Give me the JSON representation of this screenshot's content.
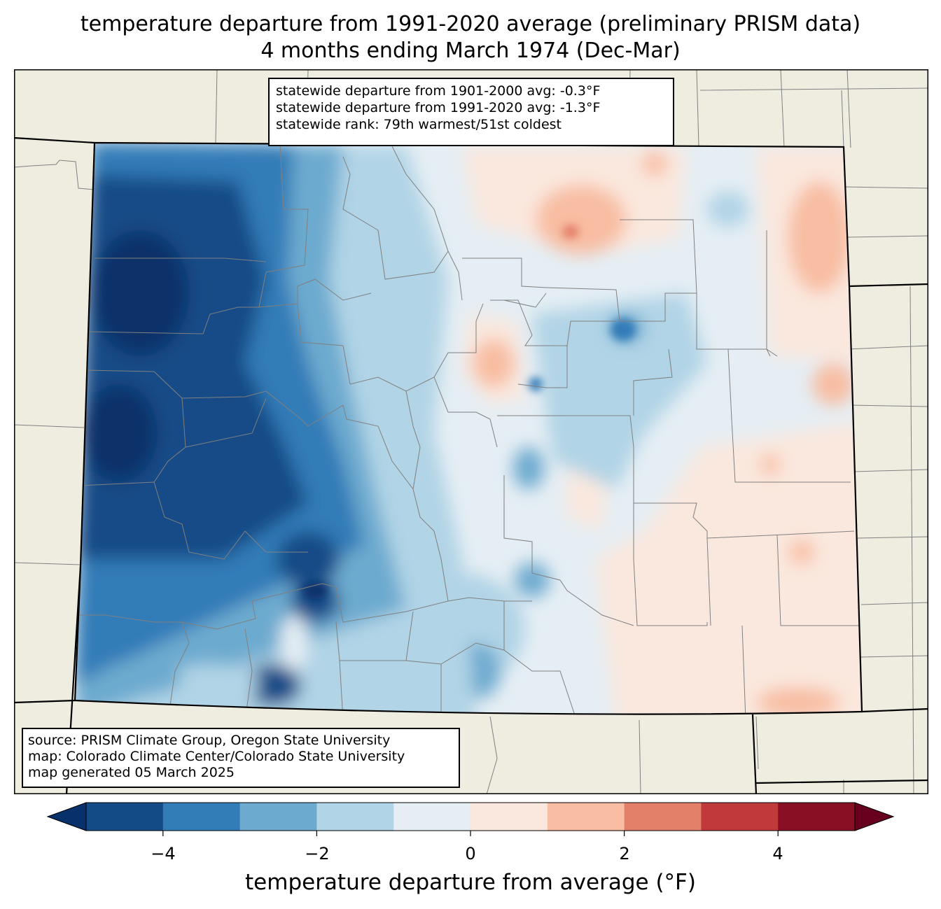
{
  "title": {
    "line1": "temperature departure from 1991-2020 average (preliminary PRISM data)",
    "line2": "4 months ending March 1974 (Dec-Mar)"
  },
  "stats": {
    "line1": "statewide departure from 1901-2000 avg: -0.3°F",
    "line2": "statewide departure from 1991-2020 avg: -1.3°F",
    "line3": "statewide rank: 79th warmest/51st coldest"
  },
  "source": {
    "line1": "source: PRISM Climate Group, Oregon State University",
    "line2": "map: Colorado Climate Center/Colorado State University",
    "line3": "map generated 05 March 2025"
  },
  "colorbar": {
    "label": "temperature departure from average (°F)",
    "range": [
      -5,
      5
    ],
    "step": 1,
    "extend": "both",
    "ticks": [
      {
        "value": -4,
        "label": "−4"
      },
      {
        "value": -2,
        "label": "−2"
      },
      {
        "value": 0,
        "label": "0"
      },
      {
        "value": 2,
        "label": "2"
      },
      {
        "value": 4,
        "label": "4"
      }
    ],
    "colors": {
      "under": "#08306b",
      "bins": [
        "#134b87",
        "#327cb7",
        "#6daacf",
        "#b1d4e6",
        "#e5eef4",
        "#fae8de",
        "#f8bda2",
        "#e3806a",
        "#c03a3c",
        "#880f24"
      ],
      "over": "#67001f"
    }
  },
  "map": {
    "land_color": "#efede0",
    "state_border_color": "#000000",
    "county_border_color": "#808080"
  }
}
